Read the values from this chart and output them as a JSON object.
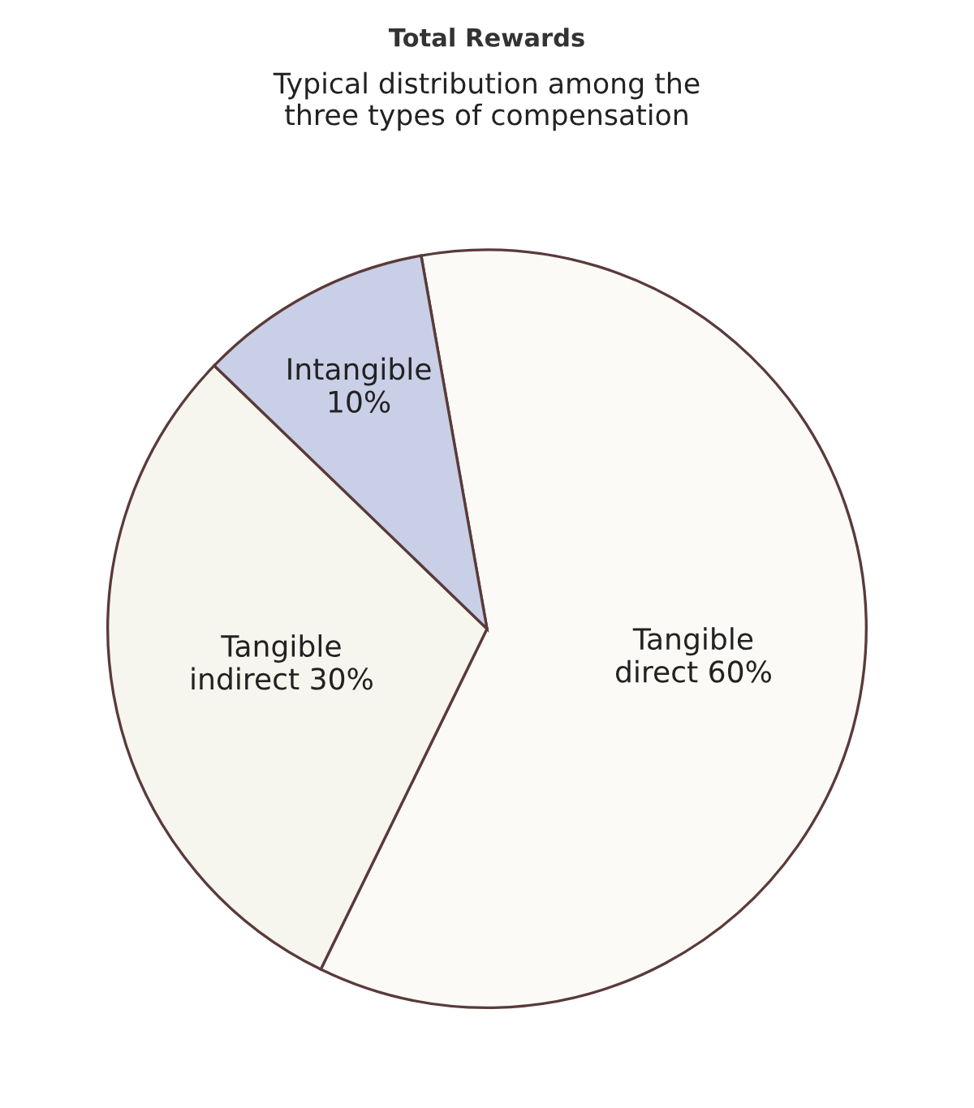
{
  "chart_data": {
    "type": "pie",
    "title": "Total Rewards",
    "subtitle": "Typical distribution among the\nthree types of compensation",
    "categories": [
      "Tangible direct",
      "Tangible indirect",
      "Intangible"
    ],
    "values": [
      60,
      30,
      10
    ],
    "colors": [
      "#fbfaf6",
      "#f6f5ee",
      "#c8cfe6"
    ],
    "value_labels": [
      "60%",
      "30%",
      "10%"
    ],
    "legend": false
  }
}
